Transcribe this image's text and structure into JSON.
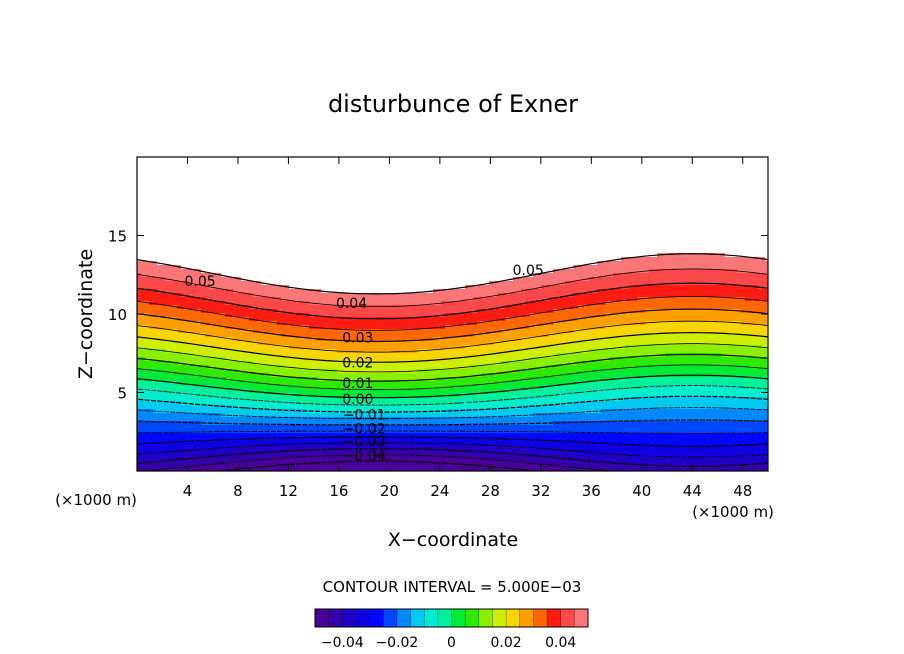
{
  "chart_data": {
    "type": "contour",
    "title": "disturbunce of Exner",
    "xlabel": "X−coordinate",
    "ylabel": "Z−coordinate",
    "x_unit": "(×1000 m)",
    "y_unit": "(×1000 m)",
    "xlim": [
      0,
      50
    ],
    "ylim": [
      0,
      20
    ],
    "x_ticks": [
      4,
      8,
      12,
      16,
      20,
      24,
      28,
      32,
      36,
      40,
      44,
      48
    ],
    "y_ticks": [
      5,
      10,
      15
    ],
    "contour_interval_text": "CONTOUR INTERVAL = 5.000E−03",
    "contour_interval": 0.005,
    "level_min": -0.05,
    "level_max": 0.05,
    "contour_labels": [
      {
        "text": "0.05",
        "x": 5,
        "y": 12.1
      },
      {
        "text": "0.05",
        "x": 31,
        "y": 12.8
      },
      {
        "text": "0.04",
        "x": 17,
        "y": 10.7
      },
      {
        "text": "0.03",
        "x": 17.5,
        "y": 8.5
      },
      {
        "text": "0.02",
        "x": 17.5,
        "y": 6.9
      },
      {
        "text": "0.01",
        "x": 17.5,
        "y": 5.6
      },
      {
        "text": "0.00",
        "x": 17.5,
        "y": 4.6
      },
      {
        "text": "−0.01",
        "x": 18,
        "y": 3.6
      },
      {
        "text": "−0.02",
        "x": 18,
        "y": 2.7
      },
      {
        "text": "−0.03",
        "x": 18,
        "y": 1.9
      },
      {
        "text": "−0.04",
        "x": 18,
        "y": 1.0
      }
    ],
    "colorbar_ticks": [
      "−0.04",
      "−0.02",
      "0",
      "0.02",
      "0.04"
    ],
    "colorbar_tick_values": [
      -0.04,
      -0.02,
      0,
      0.02,
      0.04
    ],
    "colormap": "rainbow (purple → blue → cyan → green → yellow → orange → red → light red)",
    "above_max_fill": "#ffffff",
    "negative_contour_style": "dashed",
    "grid": false
  }
}
